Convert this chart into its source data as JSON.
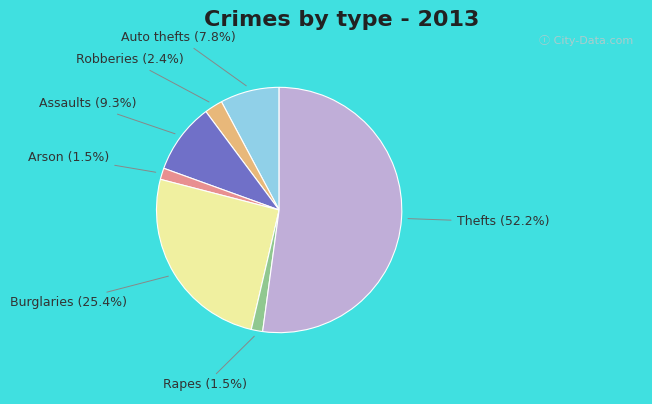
{
  "title": "Crimes by type - 2013",
  "slices_ordered_ccw": [
    {
      "label": "Auto thefts (7.8%)",
      "value": 7.8,
      "color": "#90d0e8"
    },
    {
      "label": "Robberies (2.4%)",
      "value": 2.4,
      "color": "#e8b87a"
    },
    {
      "label": "Assaults (9.3%)",
      "value": 9.3,
      "color": "#7070c8"
    },
    {
      "label": "Arson (1.5%)",
      "value": 1.5,
      "color": "#e89090"
    },
    {
      "label": "Burglaries (25.4%)",
      "value": 25.4,
      "color": "#f0f0a0"
    },
    {
      "label": "Rapes (1.5%)",
      "value": 1.5,
      "color": "#90c890"
    },
    {
      "label": "Thefts (52.2%)",
      "value": 52.2,
      "color": "#c0aed8"
    }
  ],
  "startangle": 90,
  "bg_top": "#40e0e0",
  "bg_inner": "#d8eed8",
  "title_fontsize": 16,
  "label_fontsize": 9,
  "watermark": "City-Data.com"
}
